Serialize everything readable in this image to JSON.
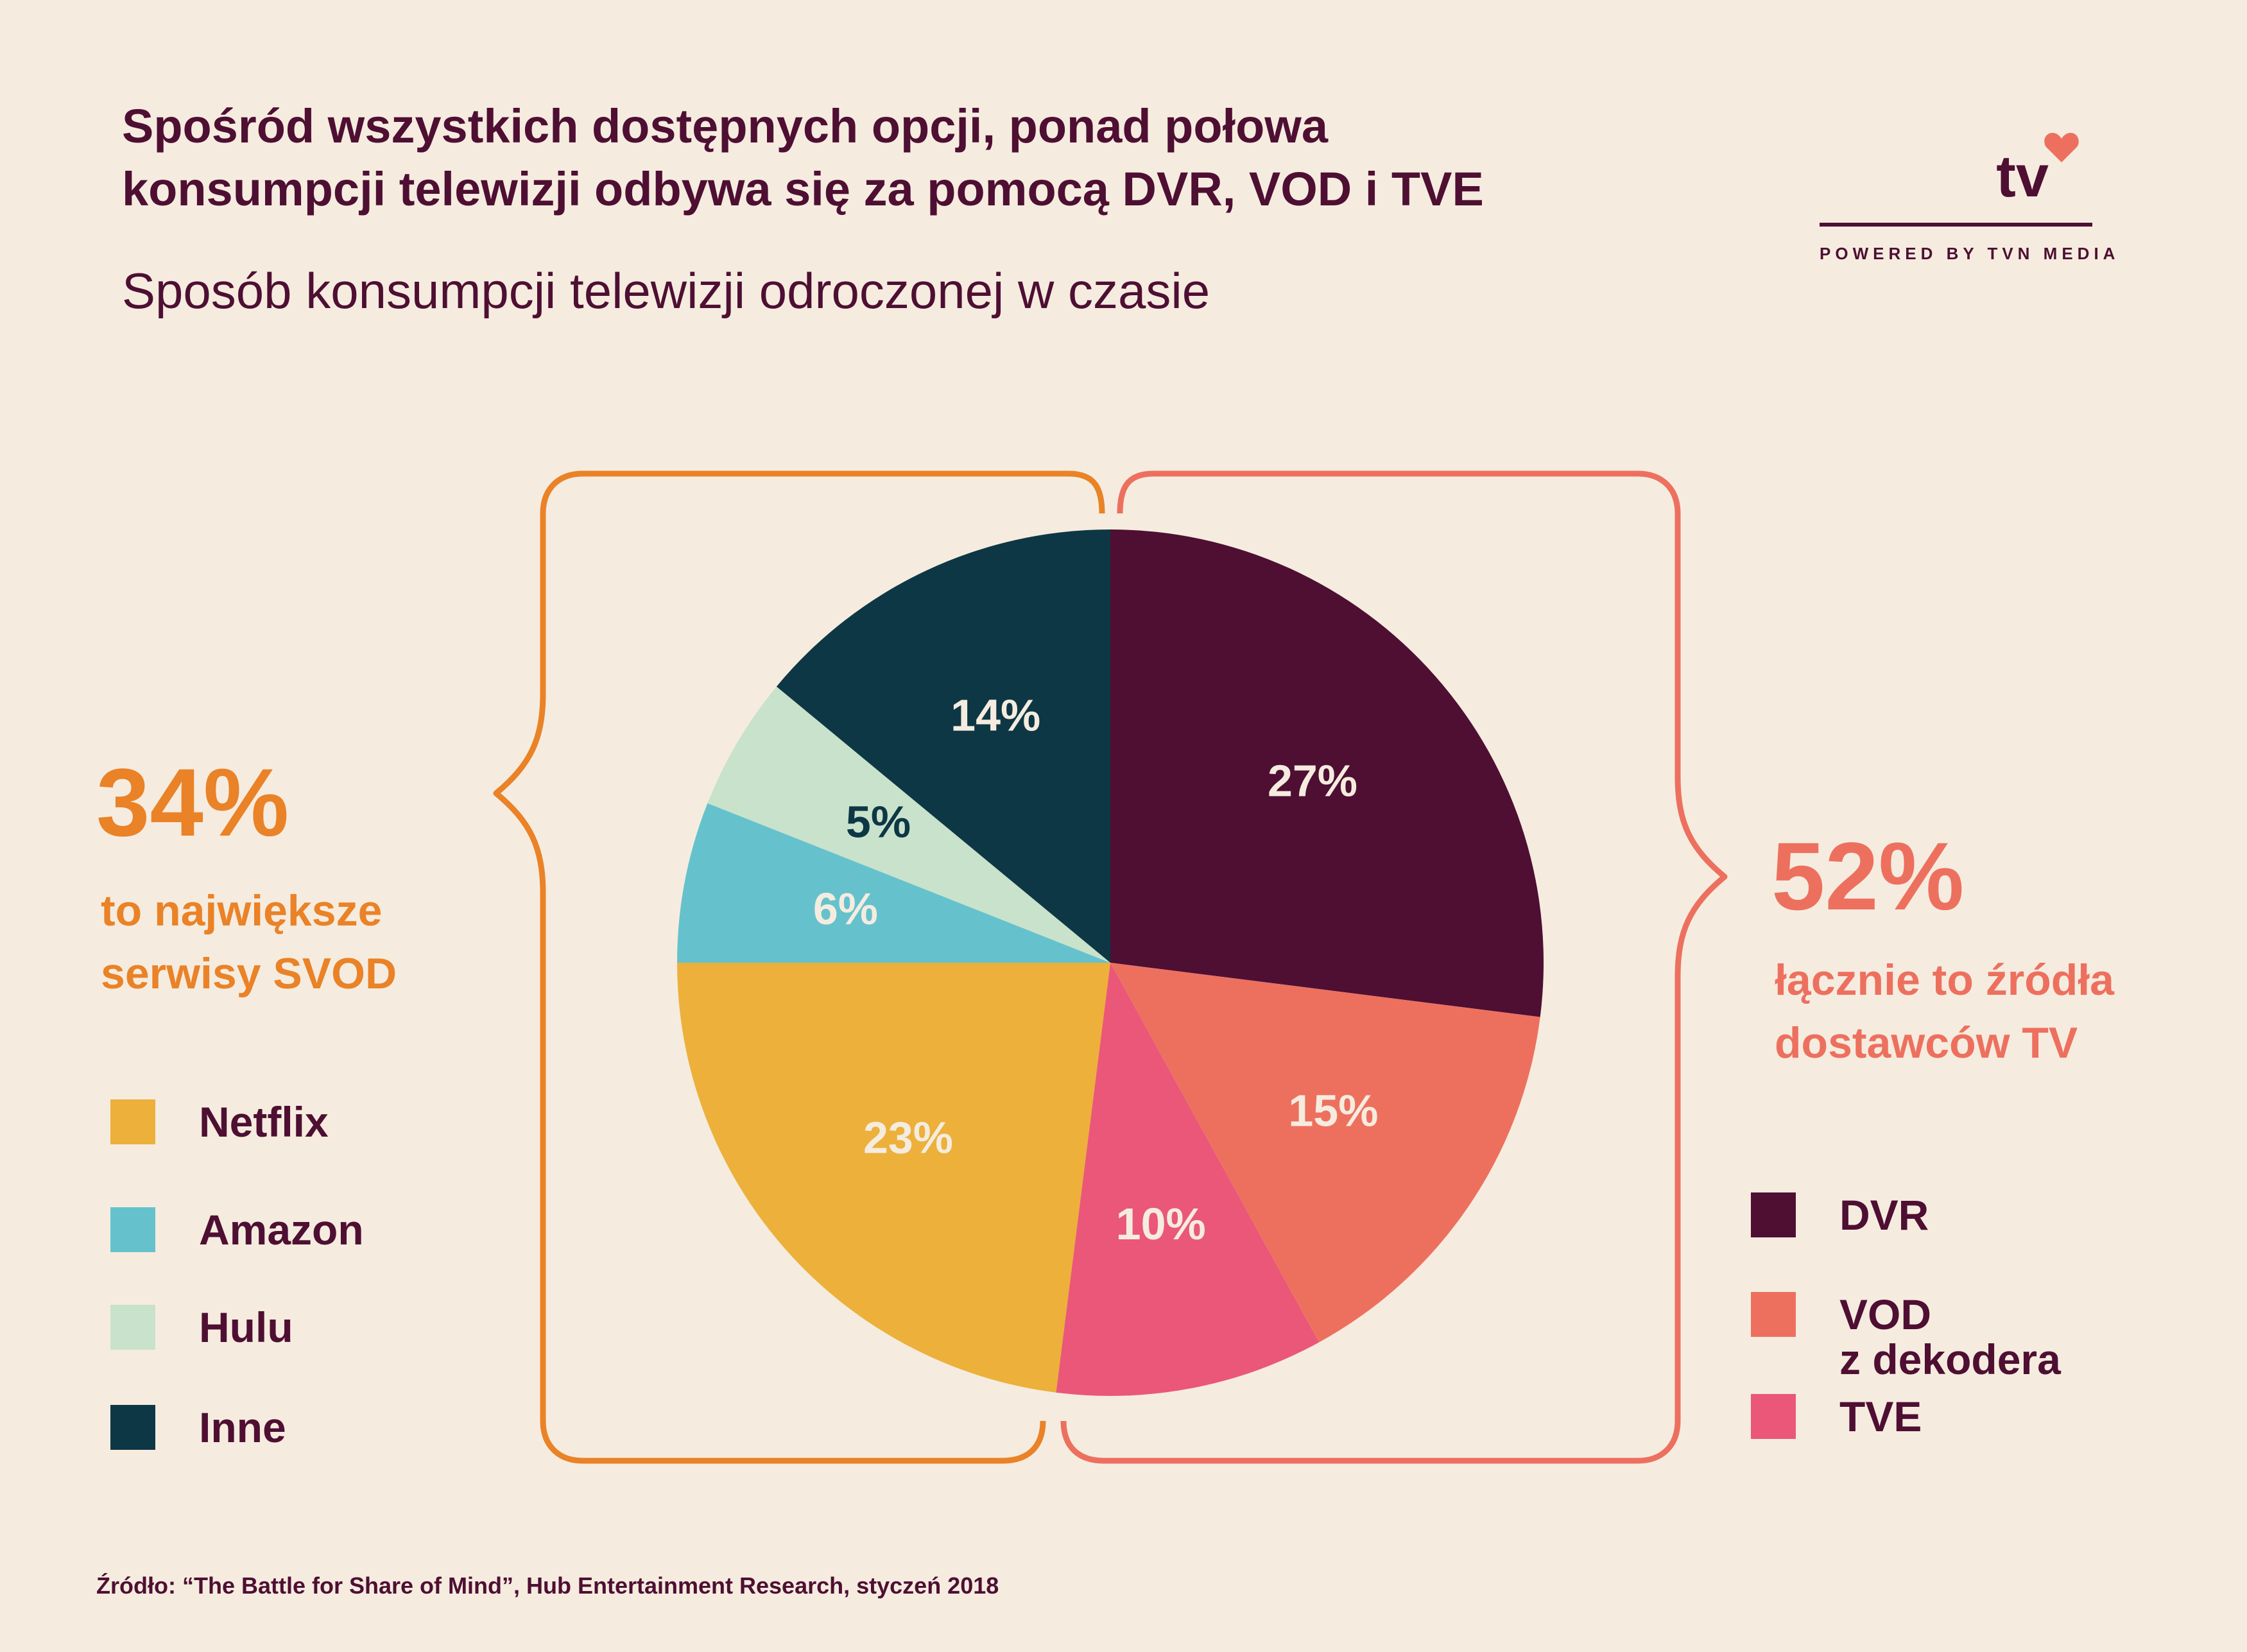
{
  "title": {
    "line1": "Spośród wszystkich dostępnych opcji, ponad połowa",
    "line2": "konsumpcji telewizji odbywa się za pomocą DVR, VOD i TVE"
  },
  "subtitle": "Sposób konsumpcji telewizji odroczonej w czasie",
  "logo": {
    "brand": "tv",
    "tagline": "POWERED BY TVN MEDIA",
    "icon": "heart-icon"
  },
  "left_group": {
    "value": "34%",
    "caption_line1": "to największe",
    "caption_line2": "serwisy SVOD",
    "color": "#ea8227"
  },
  "right_group": {
    "value": "52%",
    "caption_line1": "łącznie to źródła",
    "caption_line2": "dostawców TV",
    "color": "#ed705f"
  },
  "legend_left": [
    {
      "label": "Netflix",
      "color": "#ecb03b"
    },
    {
      "label": "Amazon",
      "color": "#65c2cd"
    },
    {
      "label": "Hulu",
      "color": "#c9e2cb"
    },
    {
      "label": "Inne",
      "color": "#0d3745"
    }
  ],
  "legend_right": [
    {
      "label_line1": "DVR",
      "label_line2": "",
      "color": "#4e0f33"
    },
    {
      "label_line1": "VOD",
      "label_line2": "z dekodera",
      "color": "#ed705f"
    },
    {
      "label_line1": "TVE",
      "label_line2": "",
      "color": "#ea5778"
    }
  ],
  "chart_data": {
    "type": "pie",
    "title": "Sposób konsumpcji telewizji odroczonej w czasie",
    "categories": [
      "DVR",
      "VOD z dekodera",
      "TVE",
      "Netflix",
      "Amazon",
      "Hulu",
      "Inne"
    ],
    "values": [
      27,
      15,
      10,
      23,
      6,
      5,
      14
    ],
    "labels": [
      "27%",
      "15%",
      "10%",
      "23%",
      "6%",
      "5%",
      "14%"
    ],
    "colors": [
      "#4e0f33",
      "#ed705f",
      "#ea5778",
      "#ecb03b",
      "#65c2cd",
      "#c9e2cb",
      "#0d3745"
    ],
    "label_colors": [
      "#f5ecdf",
      "#f5ecdf",
      "#f5ecdf",
      "#f5ecdf",
      "#f5ecdf",
      "#0d3745",
      "#f5ecdf"
    ],
    "start": "12 o'clock",
    "direction": "clockwise"
  },
  "source": "Źródło: “The Battle for Share of Mind”, Hub Entertainment Research, styczeń 2018"
}
